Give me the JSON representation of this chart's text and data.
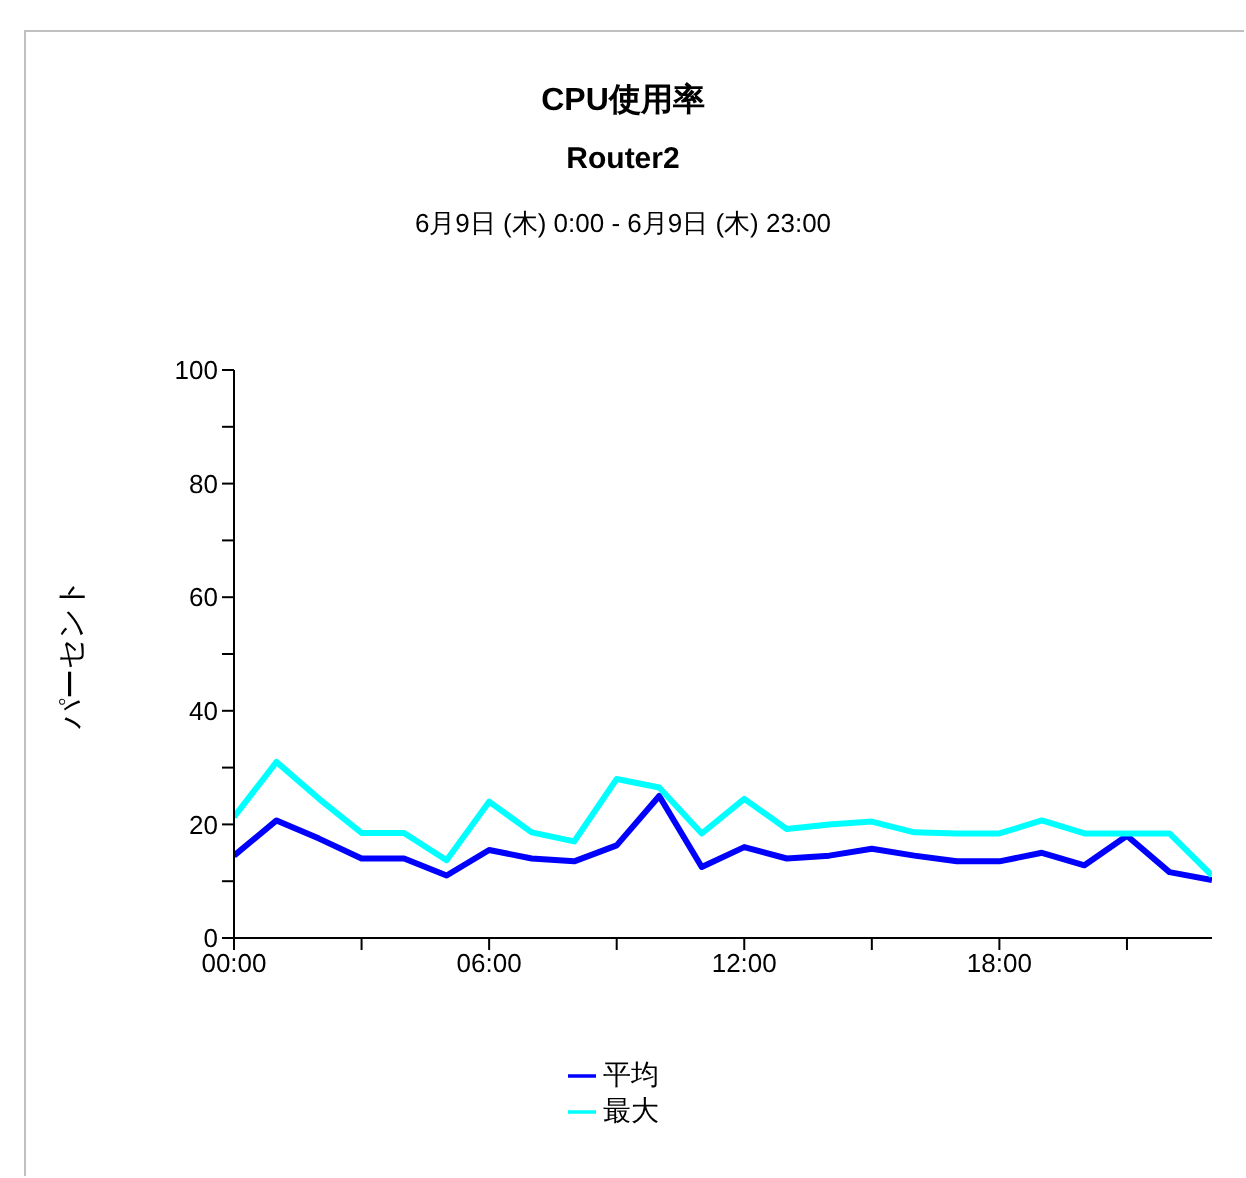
{
  "chart_data": {
    "type": "line",
    "title": "CPU使用率",
    "subtitle": "Router2",
    "annotations": [
      "6月9日 (木) 0:00 - 6月9日 (木) 23:00"
    ],
    "ylabel": "パーセント",
    "x": [
      0,
      1,
      2,
      3,
      4,
      5,
      6,
      7,
      8,
      9,
      10,
      11,
      12,
      13,
      14,
      15,
      16,
      17,
      18,
      19,
      20,
      21,
      22,
      23
    ],
    "xlim": [
      0,
      23
    ],
    "xticks": [
      {
        "value": 0,
        "label": "00:00"
      },
      {
        "value": 3,
        "label": null
      },
      {
        "value": 6,
        "label": "06:00"
      },
      {
        "value": 9,
        "label": null
      },
      {
        "value": 12,
        "label": "12:00"
      },
      {
        "value": 15,
        "label": null
      },
      {
        "value": 18,
        "label": "18:00"
      },
      {
        "value": 21,
        "label": null
      }
    ],
    "ylim": [
      0,
      100
    ],
    "yticks": [
      0,
      {
        "value": 10,
        "label": null
      },
      20,
      {
        "value": 30,
        "label": null
      },
      40,
      {
        "value": 50,
        "label": null
      },
      60,
      {
        "value": 70,
        "label": null
      },
      80,
      {
        "value": 90,
        "label": null
      },
      100
    ],
    "series": [
      {
        "name": "平均",
        "color": "#0000ff",
        "values": [
          14.5,
          20.7,
          17.5,
          14,
          14,
          11,
          15.5,
          14,
          13.5,
          16.3,
          25,
          12.5,
          16,
          14,
          14.5,
          15.7,
          14.5,
          13.5,
          13.5,
          15,
          12.8,
          18,
          11.6,
          10.2
        ]
      },
      {
        "name": "最大",
        "color": "#00ffff",
        "values": [
          21.3,
          31,
          24.5,
          18.5,
          18.5,
          13.7,
          24,
          18.6,
          17,
          28,
          26.5,
          18.4,
          24.5,
          19.2,
          20,
          20.5,
          18.6,
          18.4,
          18.4,
          20.7,
          18.4,
          18.4,
          18.4,
          11
        ]
      }
    ],
    "grid": false,
    "legend": "bottom",
    "marker": "none",
    "line_style": "solid"
  }
}
